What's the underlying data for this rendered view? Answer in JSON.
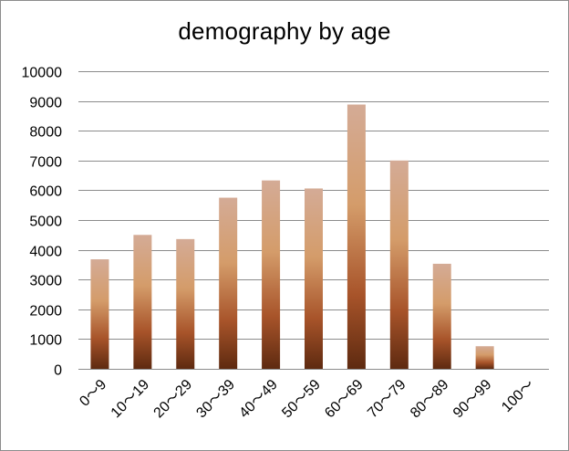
{
  "chart_data": {
    "type": "bar",
    "title": "demography by age",
    "xlabel": "",
    "ylabel": "",
    "categories": [
      "0～9",
      "10～19",
      "20～29",
      "30～39",
      "40～49",
      "50～59",
      "60～69",
      "70～79",
      "80～89",
      "90～99",
      "100～"
    ],
    "values": [
      3680,
      4500,
      4360,
      5750,
      6330,
      6060,
      8880,
      7000,
      3530,
      760,
      0
    ],
    "ylim": [
      0,
      10000
    ],
    "yticks": [
      0,
      1000,
      2000,
      3000,
      4000,
      5000,
      6000,
      7000,
      8000,
      9000,
      10000
    ],
    "grid": true,
    "legend": "none",
    "colors": {
      "bar_top": "#d4ab96",
      "bar_mid": "#d49c6a",
      "bar_low": "#a8542a",
      "bar_bottom": "#5e2a10",
      "grid": "#8c8c8c"
    }
  }
}
